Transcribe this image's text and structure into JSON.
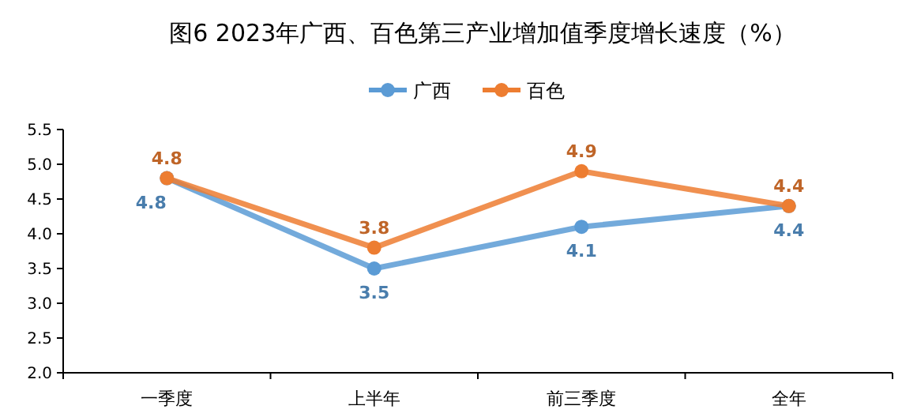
{
  "chart_data": {
    "type": "line",
    "title": "图6  2023年广西、百色第三产业增加值季度增长速度（%）",
    "categories": [
      "一季度",
      "上半年",
      "前三季度",
      "全年"
    ],
    "series": [
      {
        "name": "广西",
        "color": "#5b9bd5",
        "values": [
          4.8,
          3.5,
          4.1,
          4.4
        ]
      },
      {
        "name": "百色",
        "color": "#ed7d31",
        "values": [
          4.8,
          3.8,
          4.9,
          4.4
        ]
      }
    ],
    "ylim": [
      2.0,
      5.5
    ],
    "yticks": [
      {
        "value": 2,
        "label": "2.0"
      },
      {
        "value": 2.5,
        "label": "2.5"
      },
      {
        "value": 3,
        "label": "3.0"
      },
      {
        "value": 3.5,
        "label": "3.5"
      },
      {
        "value": 4,
        "label": "4.0"
      },
      {
        "value": 4.5,
        "label": "4.5"
      },
      {
        "value": 5,
        "label": "5.0"
      },
      {
        "value": 5.5,
        "label": "5.5"
      }
    ],
    "grid": false,
    "legend": "top",
    "marker": "circle",
    "line_style": "solid",
    "data_labels": true
  }
}
